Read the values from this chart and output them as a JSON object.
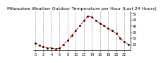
{
  "title": "Milwaukee Weather Outdoor Temperature per Hour (Last 24 Hours)",
  "hours": [
    0,
    1,
    2,
    3,
    4,
    5,
    6,
    7,
    8,
    9,
    10,
    11,
    12,
    13,
    14,
    15,
    16,
    17,
    18,
    19,
    20,
    21,
    22,
    23
  ],
  "temps": [
    26,
    24,
    23,
    22,
    22,
    21,
    22,
    25,
    28,
    32,
    36,
    40,
    44,
    48,
    47,
    44,
    42,
    40,
    38,
    36,
    34,
    30,
    27,
    25
  ],
  "line_color": "#ff0000",
  "marker_color": "#000000",
  "bg_color": "#ffffff",
  "plot_bg": "#ffffff",
  "grid_color": "#888888",
  "ylim": [
    20,
    52
  ],
  "yticks": [
    25,
    30,
    35,
    40,
    45,
    50
  ],
  "xticks": [
    0,
    2,
    4,
    6,
    8,
    10,
    12,
    14,
    16,
    18,
    20,
    22
  ],
  "title_fontsize": 4.5,
  "tick_fontsize": 3.5
}
